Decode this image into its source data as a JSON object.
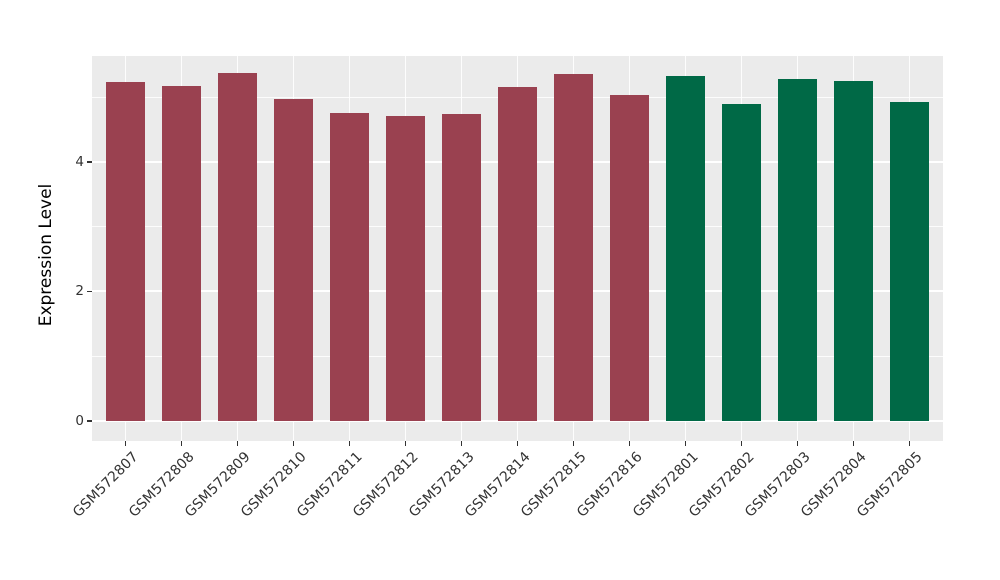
{
  "chart_data": {
    "type": "bar",
    "title": "",
    "xlabel": "",
    "ylabel": "Expression Level",
    "categories": [
      "GSM572807",
      "GSM572808",
      "GSM572809",
      "GSM572810",
      "GSM572811",
      "GSM572812",
      "GSM572813",
      "GSM572814",
      "GSM572815",
      "GSM572816",
      "GSM572801",
      "GSM572802",
      "GSM572803",
      "GSM572804",
      "GSM572805"
    ],
    "values": [
      5.23,
      5.17,
      5.37,
      4.97,
      4.75,
      4.7,
      4.74,
      5.15,
      5.36,
      5.03,
      5.32,
      4.89,
      5.28,
      5.24,
      4.92
    ],
    "bar_colors": [
      "#9A4150",
      "#9A4150",
      "#9A4150",
      "#9A4150",
      "#9A4150",
      "#9A4150",
      "#9A4150",
      "#9A4150",
      "#9A4150",
      "#9A4150",
      "#006946",
      "#006946",
      "#006946",
      "#006946",
      "#006946"
    ],
    "palette": {
      "group_red": "#9A4150",
      "group_green": "#006946"
    },
    "ytick_labels": [
      "0",
      "2",
      "4"
    ],
    "yticks": [
      0,
      2,
      4
    ],
    "yminor_gridlines": [
      1,
      3,
      5
    ],
    "ylim": [
      0,
      5.63
    ],
    "grid": "on",
    "legend": "none",
    "panel_background": "#EBEBEB",
    "gridline_color": "#FFFFFF",
    "tick_text_color": "#333333"
  }
}
